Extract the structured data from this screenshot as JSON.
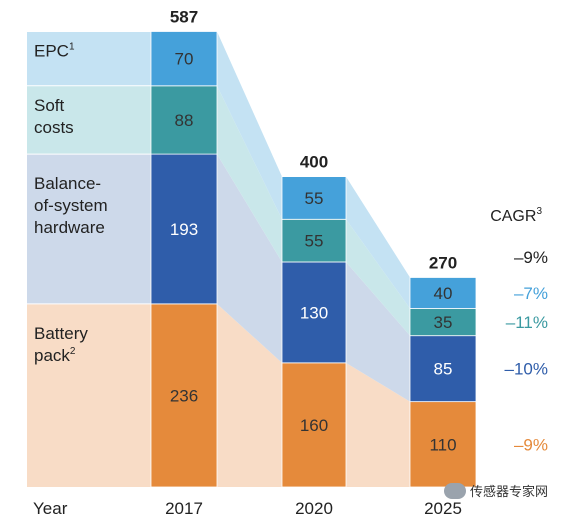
{
  "chart_data": {
    "type": "bar",
    "stacked": true,
    "x_label": "Year",
    "categories": [
      "2017",
      "2020",
      "2025"
    ],
    "totals": [
      587,
      400,
      270
    ],
    "series": [
      {
        "name": "Battery pack",
        "name_sup": "2",
        "values": [
          236,
          160,
          110
        ],
        "cagr": "–9%",
        "color": "#e58a3b",
        "band_color": "#f8dcc6",
        "label_color": "#333333"
      },
      {
        "name": "Balance-of-system hardware",
        "name_sup": "",
        "values": [
          193,
          130,
          85
        ],
        "cagr": "–10%",
        "color": "#2f5daa",
        "band_color": "#cdd9ea",
        "label_color": "#ffffff"
      },
      {
        "name": "Soft costs",
        "name_sup": "",
        "values": [
          88,
          55,
          35
        ],
        "cagr": "–11%",
        "color": "#3b9aa1",
        "band_color": "#c9e7ea",
        "label_color": "#333333"
      },
      {
        "name": "EPC",
        "name_sup": "1",
        "values": [
          70,
          55,
          40
        ],
        "cagr": "–7%",
        "color": "#45a1da",
        "band_color": "#c4e2f3",
        "label_color": "#333333"
      }
    ],
    "legend_lines": [
      [
        "Battery",
        "pack"
      ],
      [
        "Balance-",
        "of-system",
        "hardware"
      ],
      [
        "Soft",
        "costs"
      ],
      [
        "EPC"
      ]
    ],
    "cagr_header": "CAGR",
    "cagr_header_sup": "3",
    "cagr_colors": [
      "#e58a3b",
      "#2f5daa",
      "#3b9aa1",
      "#45a1da"
    ],
    "cagr_total": "–9%"
  },
  "watermark": "传感器专家网"
}
